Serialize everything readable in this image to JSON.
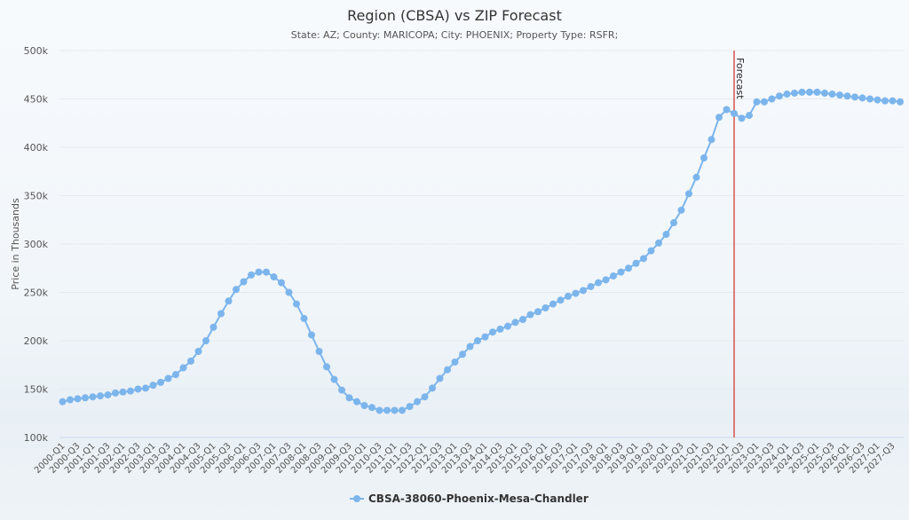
{
  "chart_data": {
    "type": "line",
    "title": "Region (CBSA) vs ZIP Forecast",
    "subtitle": "State: AZ; County: MARICOPA; City: PHOENIX; Property Type: RSFR;",
    "xlabel": "",
    "ylabel": "Price in Thousands",
    "ylim": [
      100,
      500
    ],
    "yticks": [
      100,
      150,
      200,
      250,
      300,
      350,
      400,
      450,
      500
    ],
    "ytick_labels": [
      "100k",
      "150k",
      "200k",
      "250k",
      "300k",
      "350k",
      "400k",
      "450k",
      "500k"
    ],
    "grid": true,
    "legend_position": "bottom-center",
    "x_start_year": 2000,
    "x_end_year": 2027,
    "x_label_step_quarters": 2,
    "forecast_marker": {
      "label": "Forecast",
      "at": "2022-Q2",
      "color": "#d9534f"
    },
    "series": [
      {
        "name": "CBSA-38060-Phoenix-Mesa-Chandler",
        "color": "#7cb5ec",
        "values": [
          137,
          139,
          140,
          141,
          142,
          143,
          144,
          146,
          147,
          148,
          150,
          151,
          154,
          157,
          161,
          165,
          172,
          179,
          189,
          200,
          214,
          228,
          241,
          253,
          261,
          268,
          271,
          271,
          266,
          260,
          250,
          238,
          223,
          206,
          189,
          173,
          160,
          149,
          141,
          137,
          133,
          131,
          128,
          128,
          128,
          128,
          132,
          137,
          142,
          151,
          161,
          170,
          178,
          186,
          194,
          200,
          204,
          209,
          212,
          215,
          219,
          222,
          227,
          230,
          234,
          238,
          242,
          246,
          249,
          252,
          256,
          260,
          263,
          267,
          271,
          275,
          280,
          285,
          293,
          301,
          310,
          322,
          335,
          352,
          369,
          389,
          408,
          431,
          439,
          435,
          430,
          433,
          447,
          447,
          450,
          453,
          455,
          456,
          457,
          457,
          457,
          456,
          455,
          454,
          453,
          452,
          451,
          450,
          449,
          448,
          448,
          447
        ]
      }
    ]
  }
}
